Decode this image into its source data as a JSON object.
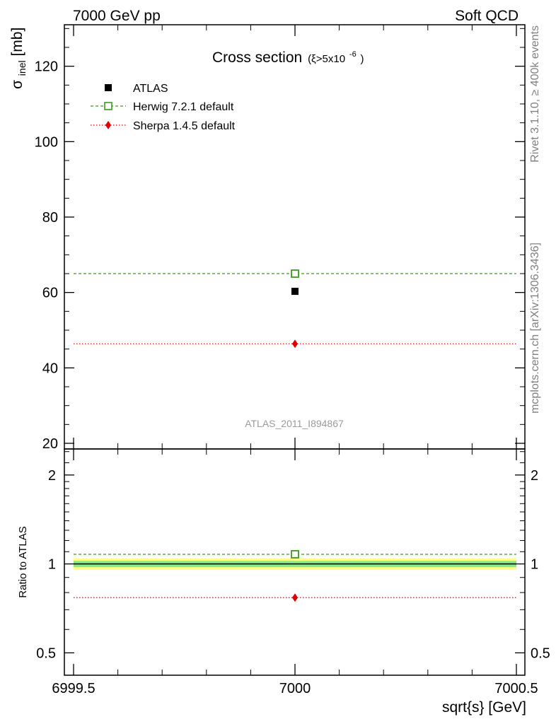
{
  "header": {
    "left": "7000 GeV pp",
    "right": "Soft QCD"
  },
  "side_labels": {
    "rivet": "Rivet 3.1.10, ≥ 400k events",
    "mcplots": "mcplots.cern.ch [arXiv:1306.3436]"
  },
  "chart_data": [
    {
      "type": "scatter",
      "panel": "main",
      "title": "Cross section",
      "title_sub": "(ξ>5x10",
      "title_sup": "-6",
      "title_close": ")",
      "ylabel_main": "σ",
      "ylabel_sub": "inel",
      "ylabel_unit": " [mb]",
      "xlim": [
        6999.5,
        7000.5
      ],
      "ylim": [
        18.5,
        131
      ],
      "yticks": [
        20,
        40,
        60,
        80,
        100,
        120
      ],
      "ytick_labels": [
        "20",
        "40",
        "60",
        "80",
        "100",
        "120"
      ],
      "watermark": "ATLAS_2011_I894867",
      "legend_position": "top-left",
      "series": [
        {
          "name": "ATLAS",
          "x": [
            7000
          ],
          "y": [
            60.3
          ],
          "marker": "filled-square",
          "color": "#000000"
        },
        {
          "name": "Herwig 7.2.1 default",
          "x": [
            7000
          ],
          "y": [
            65.0
          ],
          "marker": "open-square",
          "color": "#3a9a1a",
          "line": "dashed",
          "range": [
            6999.5,
            7000.5
          ]
        },
        {
          "name": "Sherpa 1.4.5 default",
          "x": [
            7000
          ],
          "y": [
            46.4
          ],
          "marker": "diamond",
          "color": "#e00000",
          "line": "dotted",
          "range": [
            6999.5,
            7000.5
          ]
        }
      ]
    },
    {
      "type": "scatter",
      "panel": "ratio",
      "ylabel": "Ratio to ATLAS",
      "xlabel": "sqrt{s} [GeV]",
      "xlim": [
        6999.5,
        7000.5
      ],
      "ylim": [
        0.42,
        2.45
      ],
      "yscale": "log",
      "yticks": [
        0.5,
        1,
        2
      ],
      "ytick_labels": [
        "0.5",
        "1",
        "2"
      ],
      "xticks": [
        6999.5,
        7000,
        7000.5
      ],
      "xtick_labels": [
        "6999.5",
        "7000",
        "7000.5"
      ],
      "bands": [
        {
          "name": "ATLAS total uncertainty",
          "low": 0.955,
          "high": 1.045,
          "color": "#ffff88"
        },
        {
          "name": "ATLAS stat uncertainty",
          "low": 0.975,
          "high": 1.025,
          "color": "#88ee88"
        }
      ],
      "series": [
        {
          "name": "ATLAS",
          "y": [
            1.0
          ],
          "color": "#000000"
        },
        {
          "name": "Herwig 7.2.1 default",
          "x": [
            7000
          ],
          "y": [
            1.078
          ],
          "marker": "open-square",
          "color": "#3a9a1a",
          "line": "dashed"
        },
        {
          "name": "Sherpa 1.4.5 default",
          "x": [
            7000
          ],
          "y": [
            0.769
          ],
          "marker": "diamond",
          "color": "#e00000",
          "line": "dotted"
        }
      ]
    }
  ]
}
